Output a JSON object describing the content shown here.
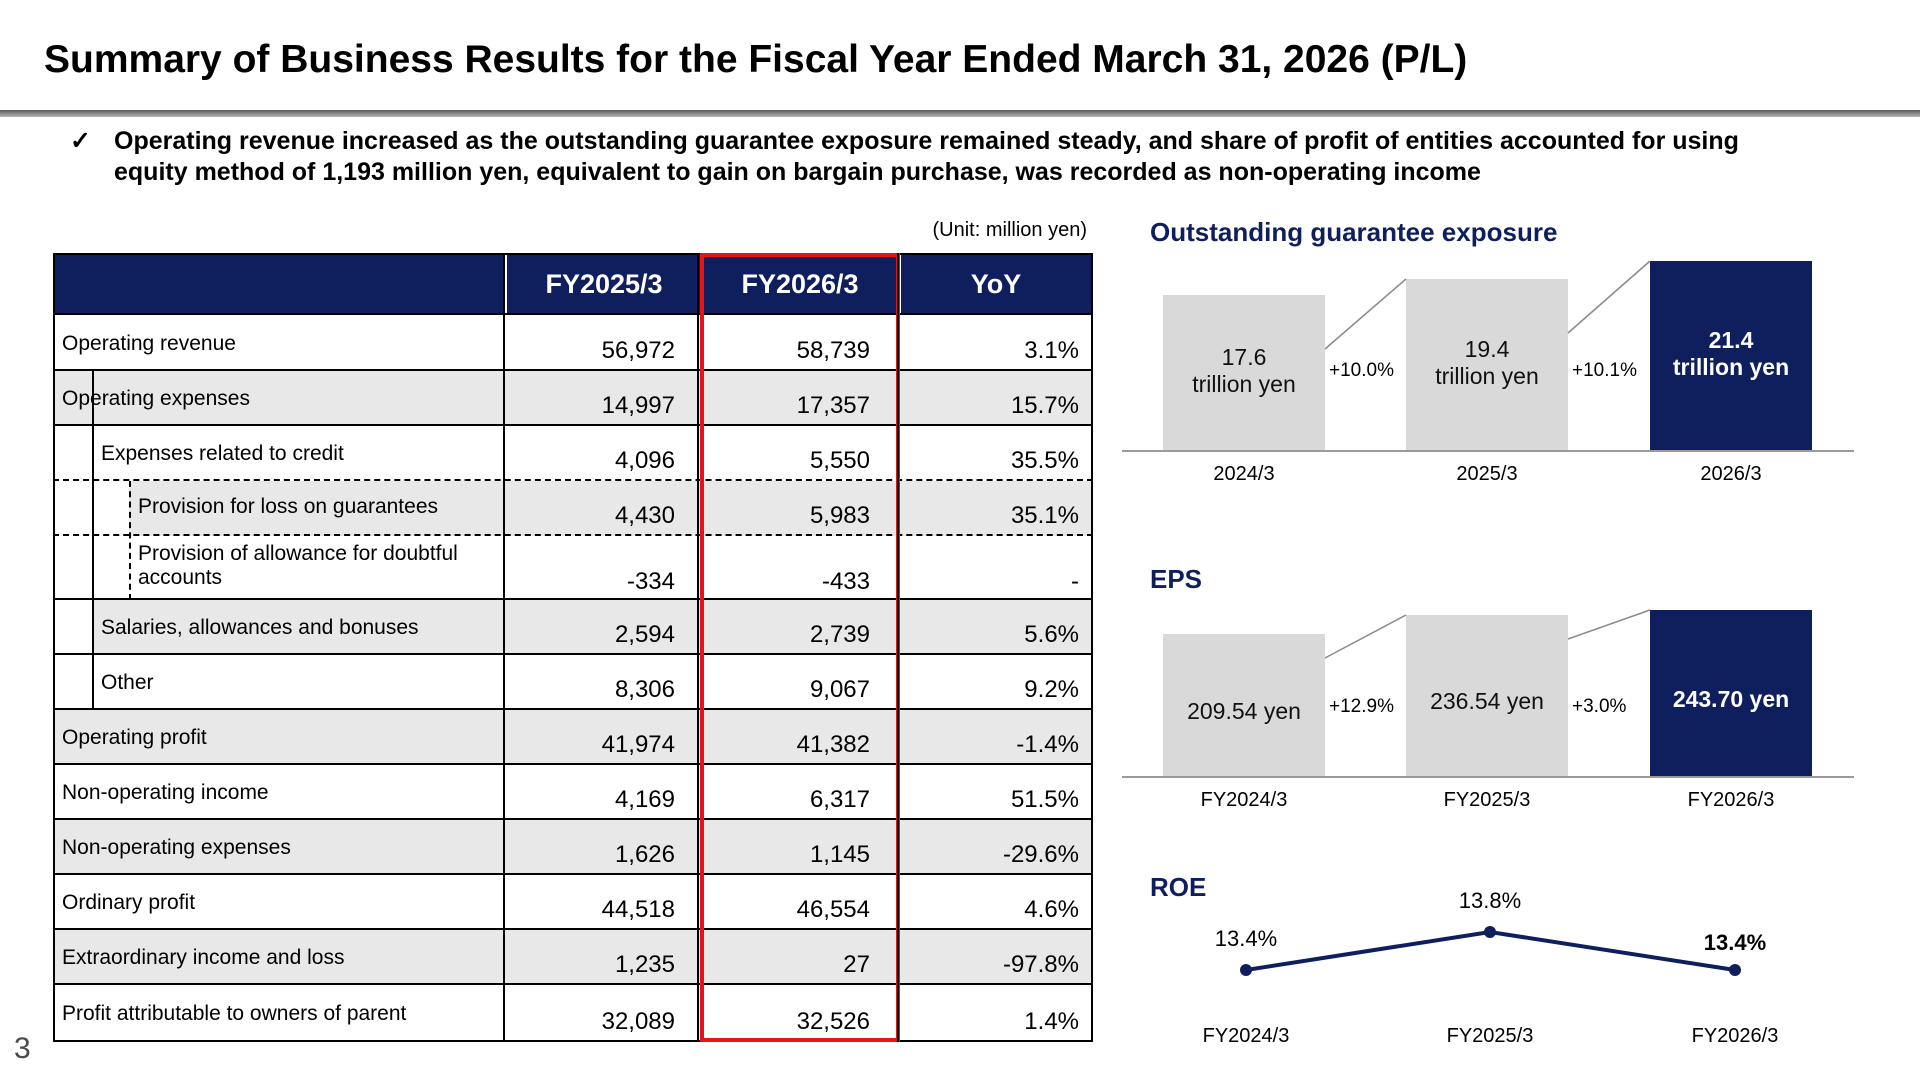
{
  "title": "Summary of Business Results for the Fiscal Year Ended March 31, 2026 (P/L)",
  "summary": {
    "check": "✓",
    "text": "Operating revenue increased as the outstanding guarantee exposure remained steady, and share of profit of entities accounted for using equity method of 1,193 million yen, equivalent to gain on bargain purchase, was recorded as non-operating income"
  },
  "table": {
    "unit": "(Unit: million yen)",
    "headers": [
      "FY2025/3",
      "FY2026/3",
      "YoY"
    ],
    "rows": [
      {
        "label": "Operating revenue",
        "fy2025": "56,972",
        "fy2026": "58,739",
        "yoy": "3.1%"
      },
      {
        "label": "Operating expenses",
        "fy2025": "14,997",
        "fy2026": "17,357",
        "yoy": "15.7%"
      },
      {
        "label": "Expenses related to credit",
        "fy2025": "4,096",
        "fy2026": "5,550",
        "yoy": "35.5%"
      },
      {
        "label": "Provision for loss on guarantees",
        "fy2025": "4,430",
        "fy2026": "5,983",
        "yoy": "35.1%"
      },
      {
        "label": "Provision of allowance for doubtful",
        "label2": "accounts",
        "fy2025": "-334",
        "fy2026": "-433",
        "yoy": "-"
      },
      {
        "label": "Salaries, allowances and bonuses",
        "fy2025": "2,594",
        "fy2026": "2,739",
        "yoy": "5.6%"
      },
      {
        "label": "Other",
        "fy2025": "8,306",
        "fy2026": "9,067",
        "yoy": "9.2%"
      },
      {
        "label": "Operating profit",
        "fy2025": "41,974",
        "fy2026": "41,382",
        "yoy": "-1.4%"
      },
      {
        "label": "Non-operating income",
        "fy2025": "4,169",
        "fy2026": "6,317",
        "yoy": "51.5%"
      },
      {
        "label": "Non-operating expenses",
        "fy2025": "1,626",
        "fy2026": "1,145",
        "yoy": "-29.6%"
      },
      {
        "label": "Ordinary profit",
        "fy2025": "44,518",
        "fy2026": "46,554",
        "yoy": "4.6%"
      },
      {
        "label": "Extraordinary income and loss",
        "fy2025": "1,235",
        "fy2026": "27",
        "yoy": "-97.8%"
      },
      {
        "label": "Profit attributable to owners of parent",
        "fy2025": "32,089",
        "fy2026": "32,526",
        "yoy": "1.4%"
      }
    ]
  },
  "page_number": "3",
  "colors": {
    "navy": "#0f1f5e",
    "grey": "#d9d9d9",
    "highlight": "#e0161b"
  },
  "chart_data": [
    {
      "type": "bar",
      "title": "Outstanding guarantee exposure",
      "categories": [
        "2024/3",
        "2025/3",
        "2026/3"
      ],
      "values": [
        17.6,
        19.4,
        21.4
      ],
      "labels": [
        [
          "17.6",
          "trillion yen"
        ],
        [
          "19.4",
          "trillion yen"
        ],
        [
          "21.4",
          "trillion yen"
        ]
      ],
      "growth": [
        "+10.0%",
        "+10.1%"
      ],
      "highlight_last": true
    },
    {
      "type": "bar",
      "title": "EPS",
      "categories": [
        "FY2024/3",
        "FY2025/3",
        "FY2026/3"
      ],
      "values": [
        209.54,
        236.54,
        243.7
      ],
      "labels": [
        "209.54  yen",
        "236.54  yen",
        "243.70  yen"
      ],
      "growth": [
        "+12.9%",
        "+3.0%"
      ],
      "highlight_last": true
    },
    {
      "type": "line",
      "title": "ROE",
      "categories": [
        "FY2024/3",
        "FY2025/3",
        "FY2026/3"
      ],
      "values": [
        13.4,
        13.8,
        13.4
      ],
      "labels": [
        "13.4%",
        "13.8%",
        "13.4%"
      ]
    }
  ]
}
